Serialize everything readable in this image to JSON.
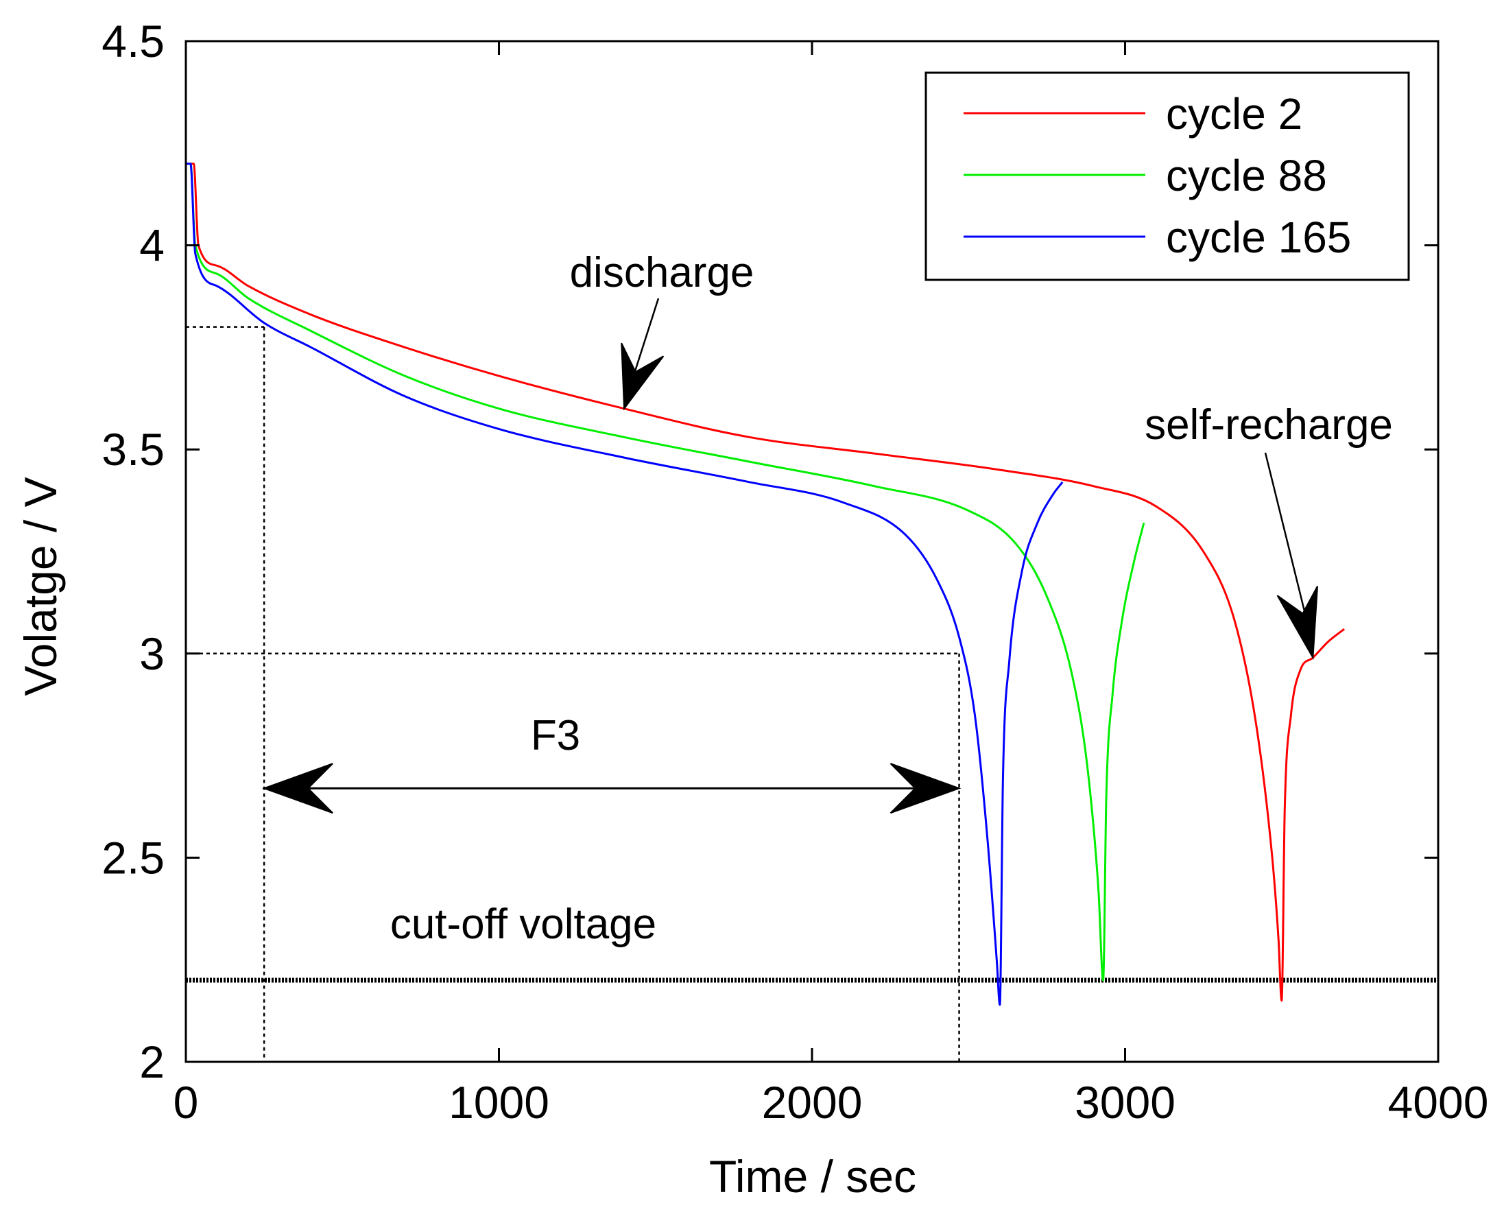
{
  "chart_data": {
    "type": "line",
    "title": "",
    "xlabel": "Time / sec",
    "ylabel": "Volatge / V",
    "xlim": [
      0,
      4000
    ],
    "ylim": [
      2,
      4.5
    ],
    "xticks": [
      0,
      1000,
      2000,
      3000,
      4000
    ],
    "yticks": [
      2,
      2.5,
      3,
      3.5,
      4,
      4.5
    ],
    "xtick_labels": [
      "0",
      "1000",
      "2000",
      "3000",
      "4000"
    ],
    "ytick_labels": [
      "2",
      "2.5",
      "3",
      "3.5",
      "4",
      "4.5"
    ],
    "grid": false,
    "legend_position": "top-right",
    "series": [
      {
        "name": "cycle 2",
        "color": "#ff0000",
        "x": [
          0,
          15,
          25,
          40,
          100,
          200,
          400,
          700,
          1000,
          1400,
          1800,
          2200,
          2600,
          2900,
          3100,
          3250,
          3350,
          3420,
          3470,
          3490,
          3500,
          3510,
          3530,
          3560,
          3600,
          3650,
          3700
        ],
        "y": [
          4.2,
          4.2,
          4.2,
          4.0,
          3.95,
          3.9,
          3.83,
          3.75,
          3.68,
          3.6,
          3.53,
          3.49,
          3.45,
          3.41,
          3.36,
          3.25,
          3.08,
          2.82,
          2.5,
          2.3,
          2.15,
          2.62,
          2.85,
          2.96,
          2.99,
          3.03,
          3.06
        ]
      },
      {
        "name": "cycle 88",
        "color": "#00ee00",
        "x": [
          0,
          15,
          30,
          100,
          200,
          400,
          700,
          1000,
          1400,
          1800,
          2200,
          2500,
          2650,
          2750,
          2830,
          2880,
          2915,
          2930,
          2940,
          2960,
          2990,
          3030,
          3060
        ],
        "y": [
          4.2,
          4.2,
          4.0,
          3.93,
          3.87,
          3.79,
          3.68,
          3.6,
          3.53,
          3.47,
          3.41,
          3.35,
          3.27,
          3.14,
          2.95,
          2.72,
          2.42,
          2.2,
          2.65,
          2.9,
          3.08,
          3.23,
          3.32
        ]
      },
      {
        "name": "cycle 165",
        "color": "#0000ff",
        "x": [
          0,
          15,
          30,
          100,
          250,
          400,
          700,
          1000,
          1400,
          1800,
          2100,
          2300,
          2400,
          2470,
          2520,
          2560,
          2590,
          2600,
          2610,
          2630,
          2670,
          2720,
          2770,
          2800
        ],
        "y": [
          4.2,
          4.2,
          3.98,
          3.9,
          3.81,
          3.75,
          3.63,
          3.55,
          3.48,
          3.42,
          3.37,
          3.29,
          3.18,
          3.04,
          2.85,
          2.55,
          2.25,
          2.14,
          2.7,
          2.98,
          3.2,
          3.32,
          3.39,
          3.42
        ]
      }
    ],
    "annotations": {
      "discharge": {
        "text": "discharge",
        "point": [
          1400,
          3.6
        ]
      },
      "self_recharge": {
        "text": "self-recharge",
        "point": [
          3600,
          2.99
        ]
      },
      "f3": {
        "text": "F3",
        "from": [
          250,
          2.67
        ],
        "to": [
          2470,
          2.67
        ]
      },
      "cutoff": {
        "text": "cut-off voltage",
        "y": 2.2
      },
      "reference_lines": {
        "start_time": 250,
        "end_time": 2470,
        "start_voltage": 3.8,
        "end_voltage": 3.0
      }
    }
  }
}
